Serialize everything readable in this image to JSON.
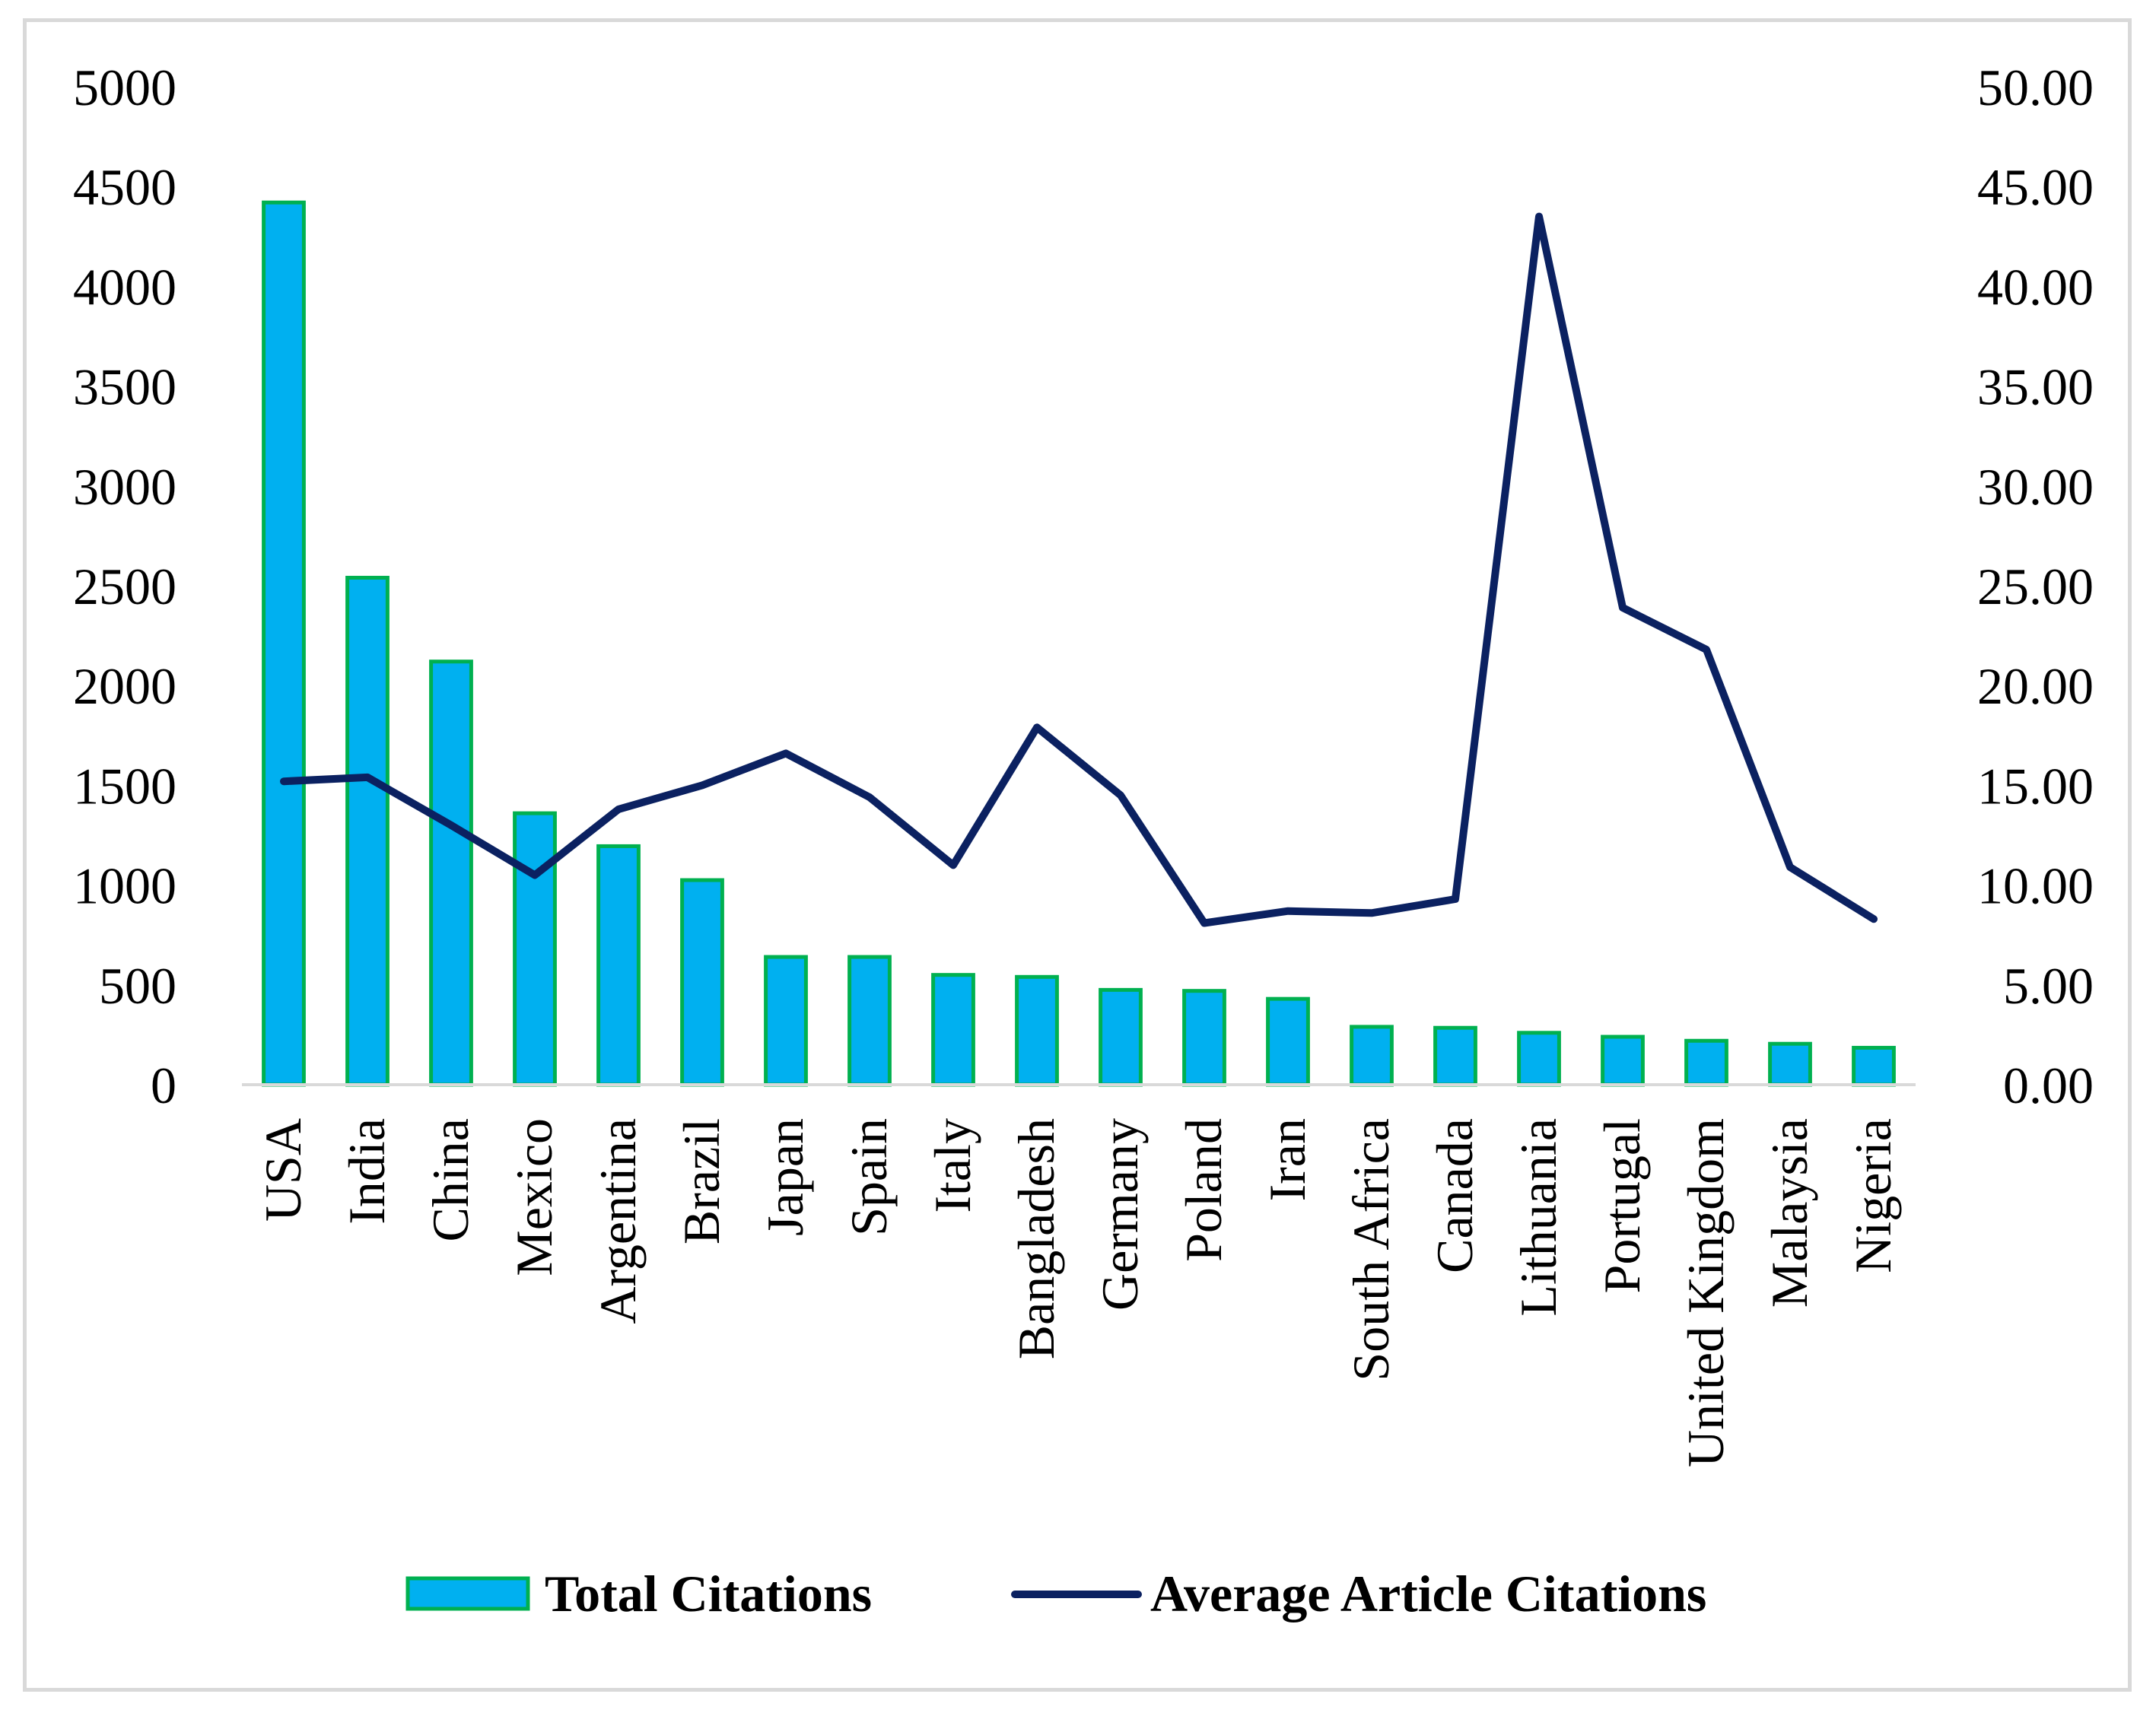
{
  "chart_data": {
    "type": "bar",
    "title": "",
    "categories": [
      "USA",
      "India",
      "China",
      "Mexico",
      "Argentina",
      "Brazil",
      "Japan",
      "Spain",
      "Italy",
      "Bangladesh",
      "Germany",
      "Poland",
      "Iran",
      "South Africa",
      "Canada",
      "Lithuania",
      "Portugal",
      "United Kingdom",
      "Malaysia",
      "Nigeria"
    ],
    "series": [
      {
        "name": "Total Citations",
        "type": "bar",
        "axis": "left",
        "values": [
          4420,
          2540,
          2120,
          1360,
          1195,
          1025,
          640,
          640,
          550,
          540,
          475,
          470,
          430,
          290,
          285,
          260,
          240,
          220,
          205,
          185
        ]
      },
      {
        "name": "Average Article Citations",
        "type": "line",
        "axis": "right",
        "values": [
          15.2,
          15.4,
          13.0,
          10.5,
          13.8,
          15.0,
          16.6,
          14.4,
          11.0,
          17.9,
          14.5,
          8.1,
          8.7,
          8.6,
          9.3,
          43.5,
          23.9,
          21.8,
          10.9,
          8.3
        ]
      }
    ],
    "y_left": {
      "min": 0,
      "max": 5000,
      "step": 500,
      "ticks": [
        "0",
        "500",
        "1000",
        "1500",
        "2000",
        "2500",
        "3000",
        "3500",
        "4000",
        "4500",
        "5000"
      ]
    },
    "y_right": {
      "min": 0,
      "max": 50,
      "step": 5,
      "ticks": [
        "0.00",
        "5.00",
        "10.00",
        "15.00",
        "20.00",
        "25.00",
        "30.00",
        "35.00",
        "40.00",
        "45.00",
        "50.00"
      ]
    },
    "legend": {
      "position": "bottom",
      "labels": [
        "Total Citations",
        "Average Article Citations"
      ]
    },
    "grid": false,
    "colors": {
      "bar_fill": "#00b0f0",
      "bar_stroke": "#00b050",
      "line": "#0b2161",
      "axis": "#d9d9d9"
    }
  }
}
